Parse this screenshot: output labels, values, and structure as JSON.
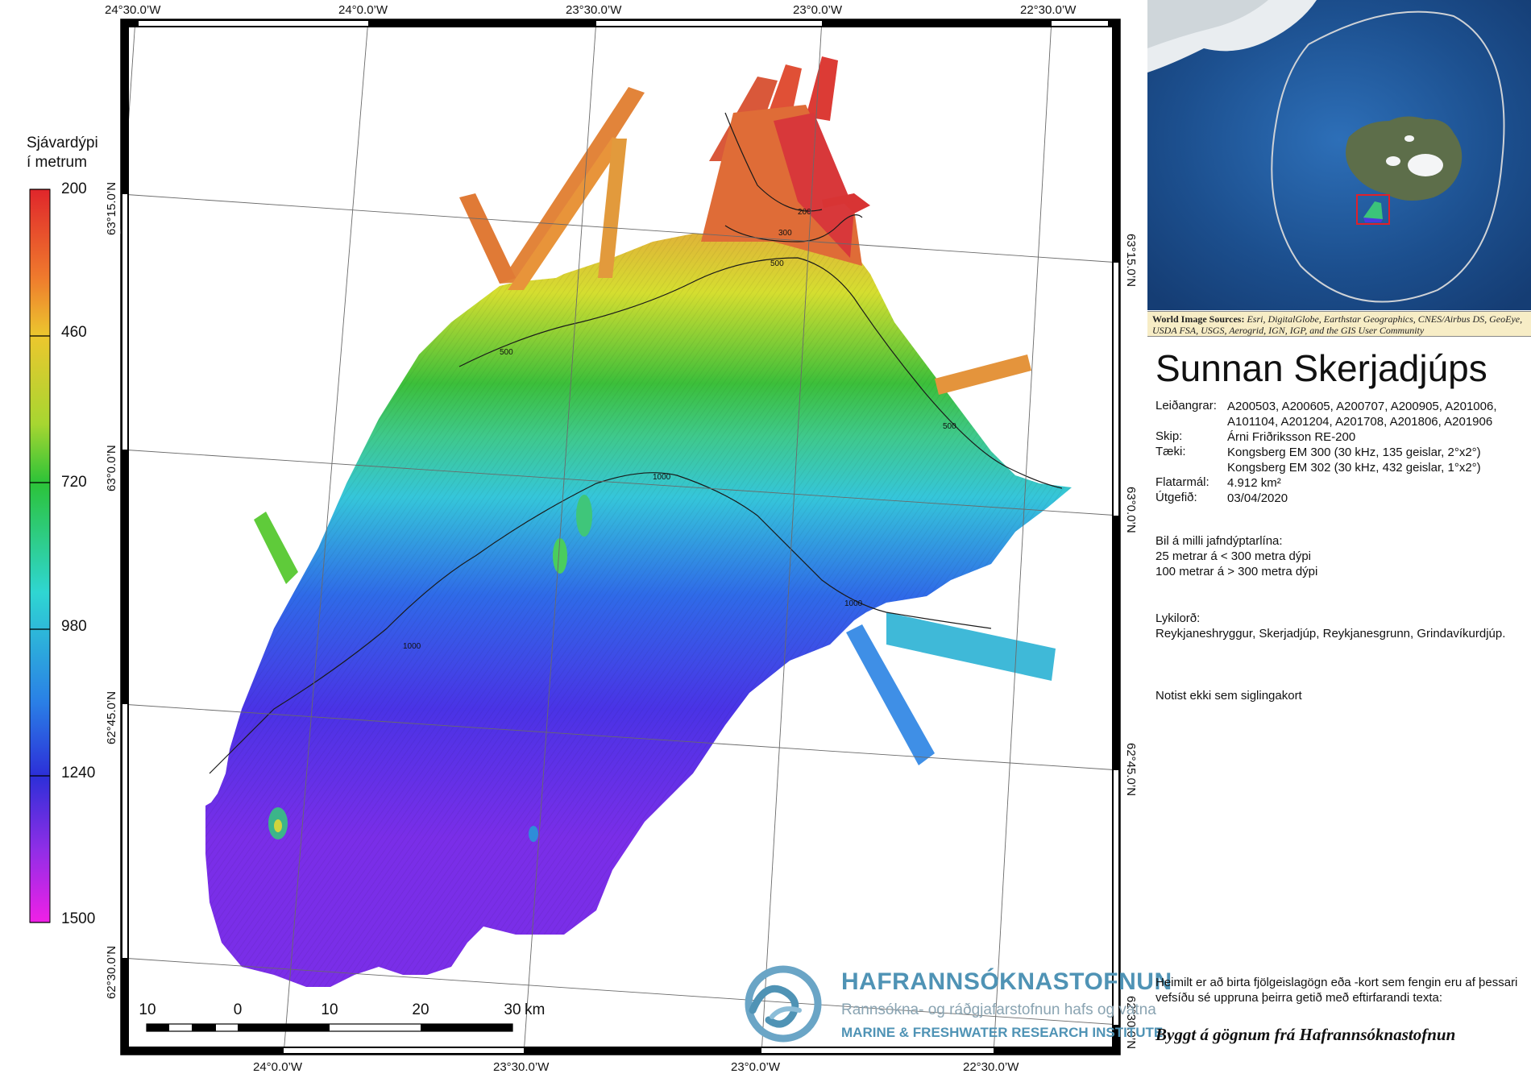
{
  "map": {
    "legend": {
      "title_line1": "Sjávardýpi",
      "title_line2": "í metrum",
      "depth_range_m": [
        200,
        1500
      ],
      "labels": [
        "200",
        "460",
        "720",
        "980",
        "1240",
        "1500"
      ]
    },
    "graticule": {
      "top_lon": [
        "24°30.0’W",
        "24°0.0’W",
        "23°30.0’W",
        "23°0.0’W",
        "22°30.0’W"
      ],
      "bottom_lon": [
        "24°0.0’W",
        "23°30.0’W",
        "23°0.0’W",
        "22°30.0’W"
      ],
      "left_lat": [
        "63°15.0’N",
        "63°0.0’N",
        "62°45.0’N",
        "62°30.0’N"
      ],
      "right_lat": [
        "63°15.0’N",
        "63°0.0’N",
        "62°45.0’N",
        "62°30.0’N"
      ]
    },
    "contour_labels": [
      "200",
      "300",
      "500",
      "500",
      "500",
      "1000",
      "1000",
      "1000"
    ],
    "scale_bar": {
      "labels": [
        "10",
        "0",
        "10",
        "20",
        "30"
      ],
      "unit": "km"
    },
    "colors": {
      "shallow": "#d7302b",
      "orange": "#e48a34",
      "yellow": "#d9db2e",
      "green": "#39bd3a",
      "cyan": "#3fd1d4",
      "blue": "#2f5fe0",
      "indigo": "#4b2ee0",
      "deep": "#f020e6"
    }
  },
  "inset": {
    "credit_label": "World Image Sources:",
    "credit_text": "Esri, DigitalGlobe, Earthstar Geographics, CNES/Airbus DS, GeoEye, USDA FSA, USGS, Aerogrid, IGN, IGP, and the GIS User Community"
  },
  "info": {
    "title": "Sunnan Skerjadjúps",
    "metadata": [
      {
        "key": "Leiðangrar:",
        "value": "A200503, A200605, A200707, A200905, A201006, A101104, A201204, A201708, A201806, A201906"
      },
      {
        "key": "Skip:",
        "value": "Árni Friðriksson RE-200"
      },
      {
        "key": "Tæki:",
        "value": "Kongsberg EM 300 (30 kHz, 135 geislar, 2°x2°)"
      },
      {
        "key": "",
        "value": "Kongsberg EM 302 (30 kHz, 432 geislar, 1°x2°)"
      },
      {
        "key": "Flatarmál:",
        "value": "4.912 km²"
      },
      {
        "key": "Útgefið:",
        "value": "03/04/2020"
      }
    ],
    "contour_interval": {
      "heading": "Bil á milli jafndýptarlína:",
      "line1": "25 metrar á < 300 metra dýpi",
      "line2": "100 metrar á > 300 metra dýpi"
    },
    "keywords": {
      "heading": "Lykilorð:",
      "text": "Reykjaneshryggur, Skerjadjúp, Reykjanesgrunn, Grindavíkurdjúp."
    },
    "note": "Notist ekki sem siglingakort",
    "permission": "Heimilt er að birta fjölgeislagögn eða -kort sem fengin eru af þessari vefsíðu sé uppruna þeirra getið með eftirfarandi texta:",
    "attribution": "Byggt á gögnum frá Hafrannsóknastofnun"
  },
  "logo": {
    "name": "HAFRANNSÓKNASTOFNUN",
    "subtitle": "Rannsókna- og ráðgjafarstofnun hafs og vatna",
    "english": "MARINE & FRESHWATER RESEARCH INSTITUTE"
  }
}
